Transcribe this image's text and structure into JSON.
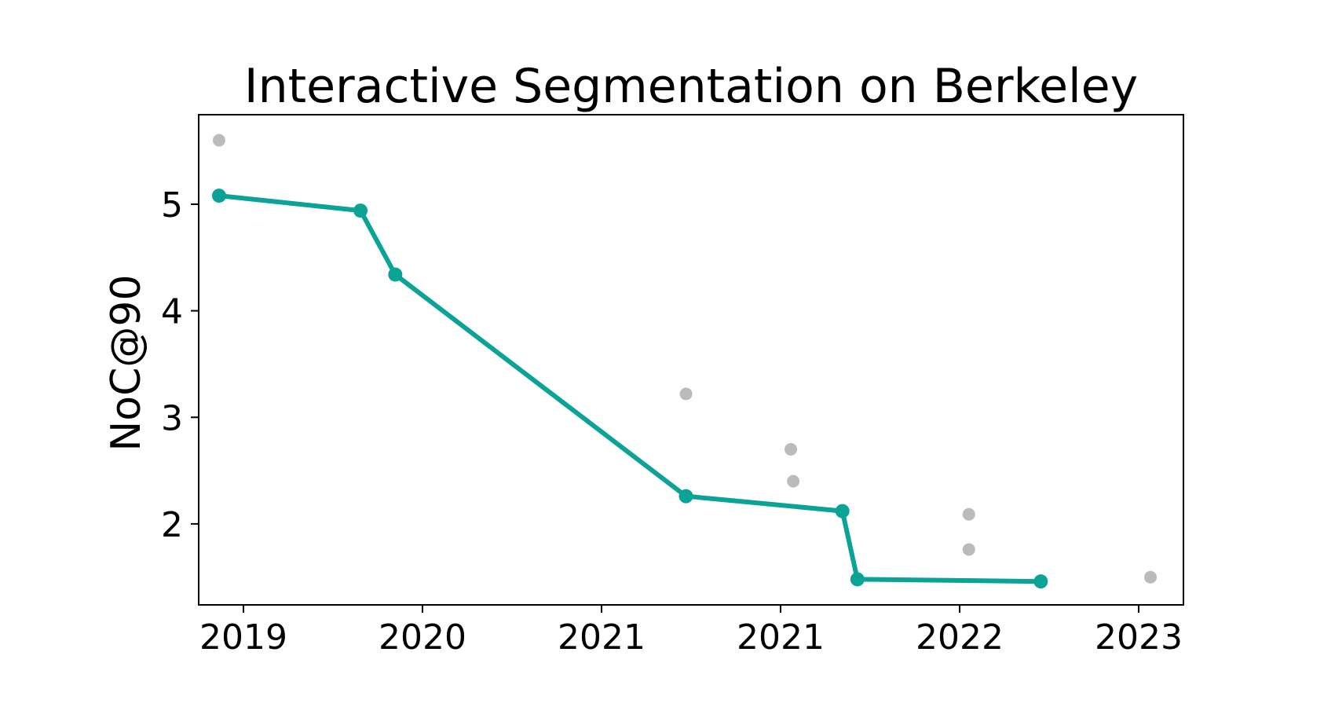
{
  "chart_data": {
    "type": "scatter",
    "title": "Interactive Segmentation on Berkeley",
    "xlabel": "",
    "ylabel": "NoC@90",
    "x_tick_labels": [
      "2019",
      "2020",
      "2021",
      "2021",
      "2022",
      "2023"
    ],
    "y_ticks": [
      2,
      3,
      4,
      5
    ],
    "y_tick_labels": [
      "2",
      "3",
      "4",
      "5"
    ],
    "xlim": [
      "2018-12-12",
      "2023-06-12"
    ],
    "ylim": [
      1.24,
      5.84
    ],
    "grid": false,
    "series": [
      {
        "kind": "state-of-the-art line",
        "color": "#0aa396",
        "x": [
          "2019-01-15",
          "2019-09-08",
          "2019-11-05",
          "2021-03-04",
          "2021-11-20",
          "2021-12-15",
          "2022-10-17"
        ],
        "y": [
          5.08,
          4.94,
          4.34,
          2.26,
          2.12,
          1.48,
          1.46
        ]
      },
      {
        "kind": "other results",
        "color": "#bbbbbb",
        "x": [
          "2019-01-15",
          "2021-03-04",
          "2021-08-26",
          "2021-08-30",
          "2022-06-19",
          "2022-06-19",
          "2023-04-18"
        ],
        "y": [
          5.6,
          3.22,
          2.7,
          2.4,
          2.09,
          1.76,
          1.5
        ]
      }
    ]
  }
}
